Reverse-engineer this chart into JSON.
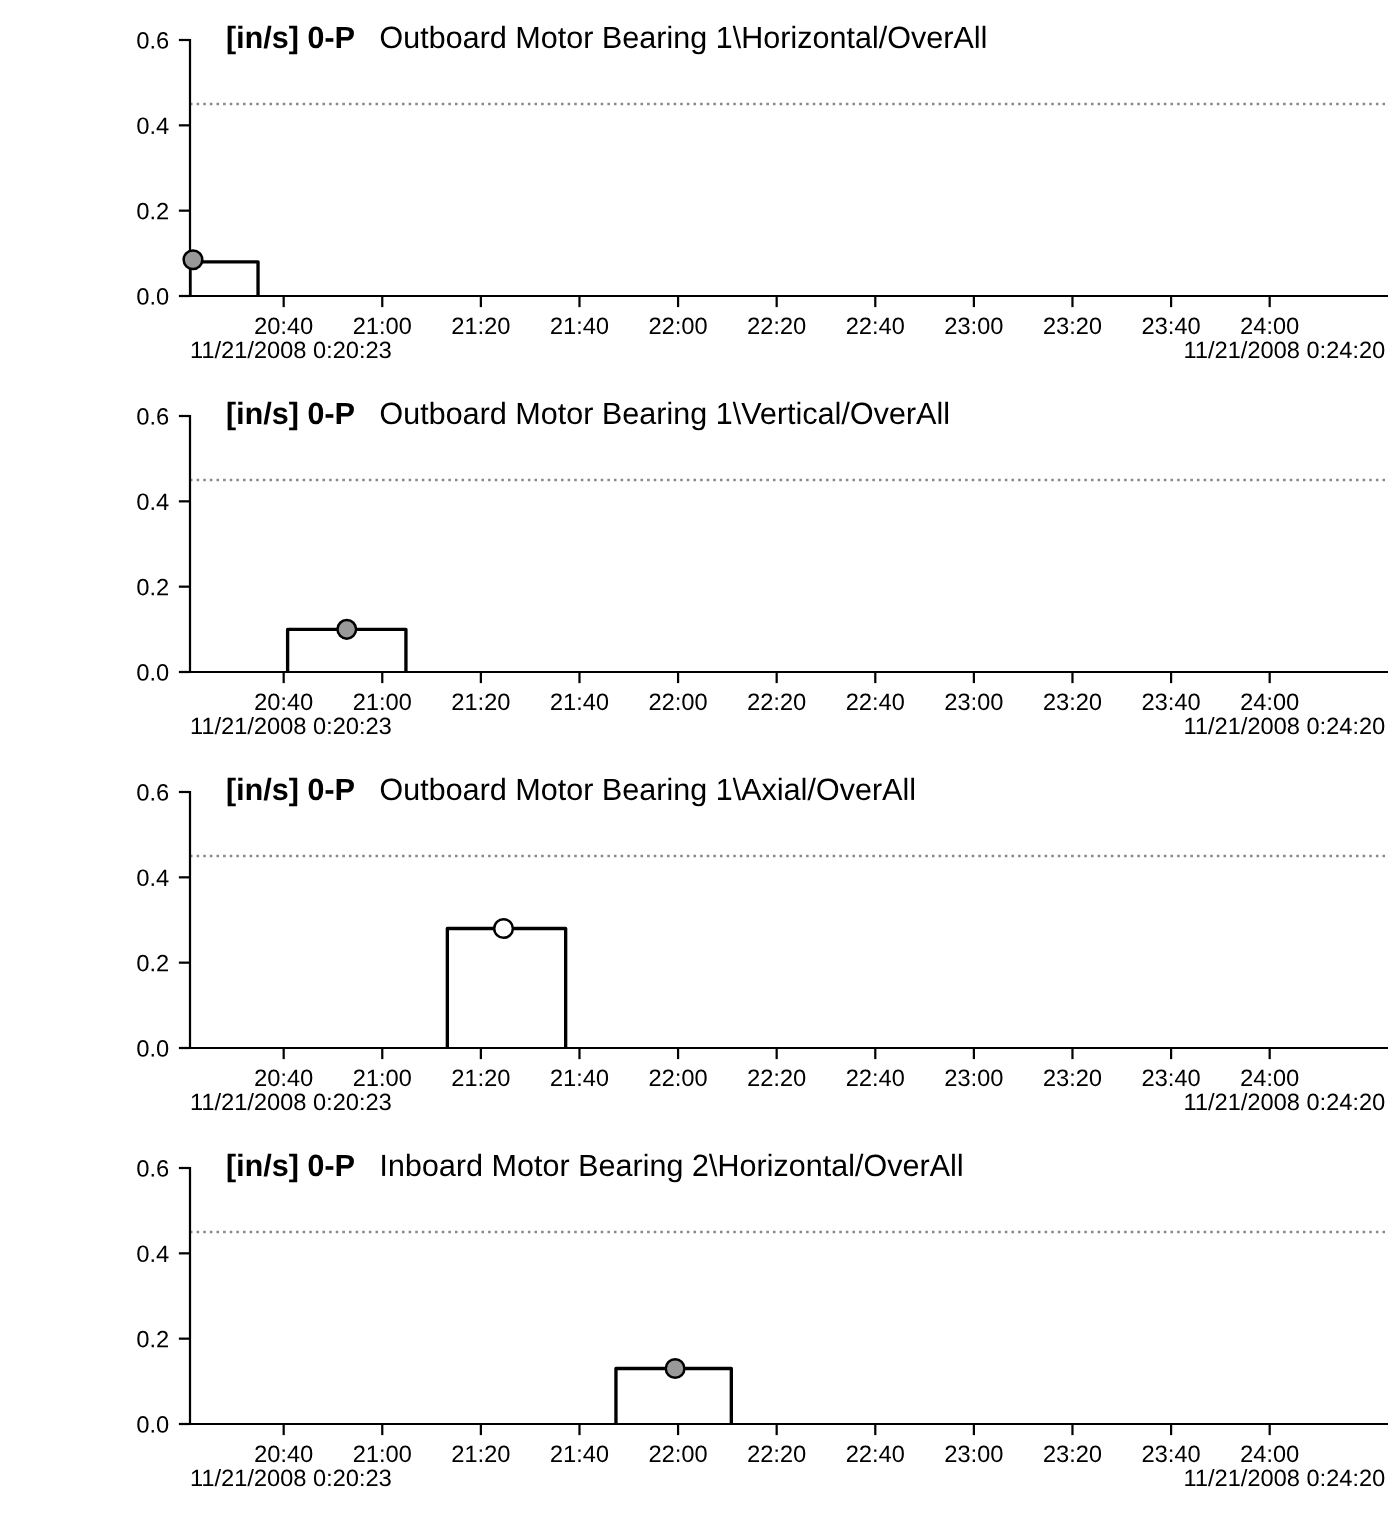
{
  "chart_data": [
    {
      "type": "line",
      "title": "[in/s] 0-P",
      "subtitle": "Outboard Motor Bearing 1\\Horizontal/OverAll",
      "series": [
        {
          "color": "#000000",
          "x": [
            20.35,
            20.35,
            20.58,
            20.58
          ],
          "values": [
            0,
            0.08,
            0.08,
            0
          ]
        },
        {
          "type": "scatter",
          "marker": "circle",
          "color": "#999999",
          "x": [
            20.36
          ],
          "values": [
            0.085
          ]
        }
      ],
      "xlim": [
        20.35,
        24.4
      ],
      "xticks": [
        {
          "value": 20.6667,
          "label": "20:40"
        },
        {
          "value": 21,
          "label": "21:00"
        },
        {
          "value": 21.3333,
          "label": "21:20"
        },
        {
          "value": 21.6667,
          "label": "21:40"
        },
        {
          "value": 22,
          "label": "22:00"
        },
        {
          "value": 22.3333,
          "label": "22:20"
        },
        {
          "value": 22.6667,
          "label": "22:40"
        },
        {
          "value": 23,
          "label": "23:00"
        },
        {
          "value": 23.3333,
          "label": "23:20"
        },
        {
          "value": 23.6667,
          "label": "23:40"
        },
        {
          "value": 24,
          "label": "24:00"
        }
      ],
      "ylim": [
        0,
        0.6
      ],
      "yticks": [
        {
          "value": 0,
          "label": "0.0"
        },
        {
          "value": 0.2,
          "label": "0.2"
        },
        {
          "value": 0.4,
          "label": "0.4"
        },
        {
          "value": 0.6,
          "label": "0.6"
        }
      ],
      "ref_lines": [
        {
          "axis": "y",
          "value": 0.45,
          "color": "#888888",
          "line_style": "dotted"
        }
      ],
      "annotations": [
        "11/21/2008 0:20:23",
        "11/21/2008 0:24:20"
      ],
      "grid": false,
      "legend": false
    },
    {
      "type": "line",
      "title": "[in/s] 0-P",
      "subtitle": "Outboard Motor Bearing 1\\Vertical/OverAll",
      "series": [
        {
          "color": "#000000",
          "x": [
            20.68,
            20.68,
            21.08,
            21.08
          ],
          "values": [
            0,
            0.1,
            0.1,
            0
          ]
        },
        {
          "type": "scatter",
          "marker": "circle",
          "color": "#999999",
          "x": [
            20.88
          ],
          "values": [
            0.1
          ]
        }
      ],
      "xlim": [
        20.35,
        24.4
      ],
      "xticks": [
        {
          "value": 20.6667,
          "label": "20:40"
        },
        {
          "value": 21,
          "label": "21:00"
        },
        {
          "value": 21.3333,
          "label": "21:20"
        },
        {
          "value": 21.6667,
          "label": "21:40"
        },
        {
          "value": 22,
          "label": "22:00"
        },
        {
          "value": 22.3333,
          "label": "22:20"
        },
        {
          "value": 22.6667,
          "label": "22:40"
        },
        {
          "value": 23,
          "label": "23:00"
        },
        {
          "value": 23.3333,
          "label": "23:20"
        },
        {
          "value": 23.6667,
          "label": "23:40"
        },
        {
          "value": 24,
          "label": "24:00"
        }
      ],
      "ylim": [
        0,
        0.6
      ],
      "yticks": [
        {
          "value": 0,
          "label": "0.0"
        },
        {
          "value": 0.2,
          "label": "0.2"
        },
        {
          "value": 0.4,
          "label": "0.4"
        },
        {
          "value": 0.6,
          "label": "0.6"
        }
      ],
      "ref_lines": [
        {
          "axis": "y",
          "value": 0.45,
          "color": "#888888",
          "line_style": "dotted"
        }
      ],
      "annotations": [
        "11/21/2008 0:20:23",
        "11/21/2008 0:24:20"
      ],
      "grid": false,
      "legend": false
    },
    {
      "type": "line",
      "title": "[in/s] 0-P",
      "subtitle": "Outboard Motor Bearing 1\\Axial/OverAll",
      "series": [
        {
          "color": "#000000",
          "x": [
            21.22,
            21.22,
            21.62,
            21.62
          ],
          "values": [
            0,
            0.28,
            0.28,
            0
          ]
        },
        {
          "type": "scatter",
          "marker": "circle",
          "color": "#ffffff",
          "x": [
            21.41
          ],
          "values": [
            0.28
          ]
        }
      ],
      "xlim": [
        20.35,
        24.4
      ],
      "xticks": [
        {
          "value": 20.6667,
          "label": "20:40"
        },
        {
          "value": 21,
          "label": "21:00"
        },
        {
          "value": 21.3333,
          "label": "21:20"
        },
        {
          "value": 21.6667,
          "label": "21:40"
        },
        {
          "value": 22,
          "label": "22:00"
        },
        {
          "value": 22.3333,
          "label": "22:20"
        },
        {
          "value": 22.6667,
          "label": "22:40"
        },
        {
          "value": 23,
          "label": "23:00"
        },
        {
          "value": 23.3333,
          "label": "23:20"
        },
        {
          "value": 23.6667,
          "label": "23:40"
        },
        {
          "value": 24,
          "label": "24:00"
        }
      ],
      "ylim": [
        0,
        0.6
      ],
      "yticks": [
        {
          "value": 0,
          "label": "0.0"
        },
        {
          "value": 0.2,
          "label": "0.2"
        },
        {
          "value": 0.4,
          "label": "0.4"
        },
        {
          "value": 0.6,
          "label": "0.6"
        }
      ],
      "ref_lines": [
        {
          "axis": "y",
          "value": 0.45,
          "color": "#888888",
          "line_style": "dotted"
        }
      ],
      "annotations": [
        "11/21/2008 0:20:23",
        "11/21/2008 0:24:20"
      ],
      "grid": false,
      "legend": false
    },
    {
      "type": "line",
      "title": "[in/s] 0-P",
      "subtitle": "Inboard Motor Bearing 2\\Horizontal/OverAll",
      "series": [
        {
          "color": "#000000",
          "x": [
            21.79,
            21.79,
            22.18,
            22.18
          ],
          "values": [
            0,
            0.13,
            0.13,
            0
          ]
        },
        {
          "type": "scatter",
          "marker": "circle",
          "color": "#999999",
          "x": [
            21.99
          ],
          "values": [
            0.13
          ]
        }
      ],
      "xlim": [
        20.35,
        24.4
      ],
      "xticks": [
        {
          "value": 20.6667,
          "label": "20:40"
        },
        {
          "value": 21,
          "label": "21:00"
        },
        {
          "value": 21.3333,
          "label": "21:20"
        },
        {
          "value": 21.6667,
          "label": "21:40"
        },
        {
          "value": 22,
          "label": "22:00"
        },
        {
          "value": 22.3333,
          "label": "22:20"
        },
        {
          "value": 22.6667,
          "label": "22:40"
        },
        {
          "value": 23,
          "label": "23:00"
        },
        {
          "value": 23.3333,
          "label": "23:20"
        },
        {
          "value": 23.6667,
          "label": "23:40"
        },
        {
          "value": 24,
          "label": "24:00"
        }
      ],
      "ylim": [
        0,
        0.6
      ],
      "yticks": [
        {
          "value": 0,
          "label": "0.0"
        },
        {
          "value": 0.2,
          "label": "0.2"
        },
        {
          "value": 0.4,
          "label": "0.4"
        },
        {
          "value": 0.6,
          "label": "0.6"
        }
      ],
      "ref_lines": [
        {
          "axis": "y",
          "value": 0.45,
          "color": "#888888",
          "line_style": "dotted"
        }
      ],
      "annotations": [
        "11/21/2008 0:20:23",
        "11/21/2008 0:24:20"
      ],
      "grid": false,
      "legend": false
    }
  ]
}
